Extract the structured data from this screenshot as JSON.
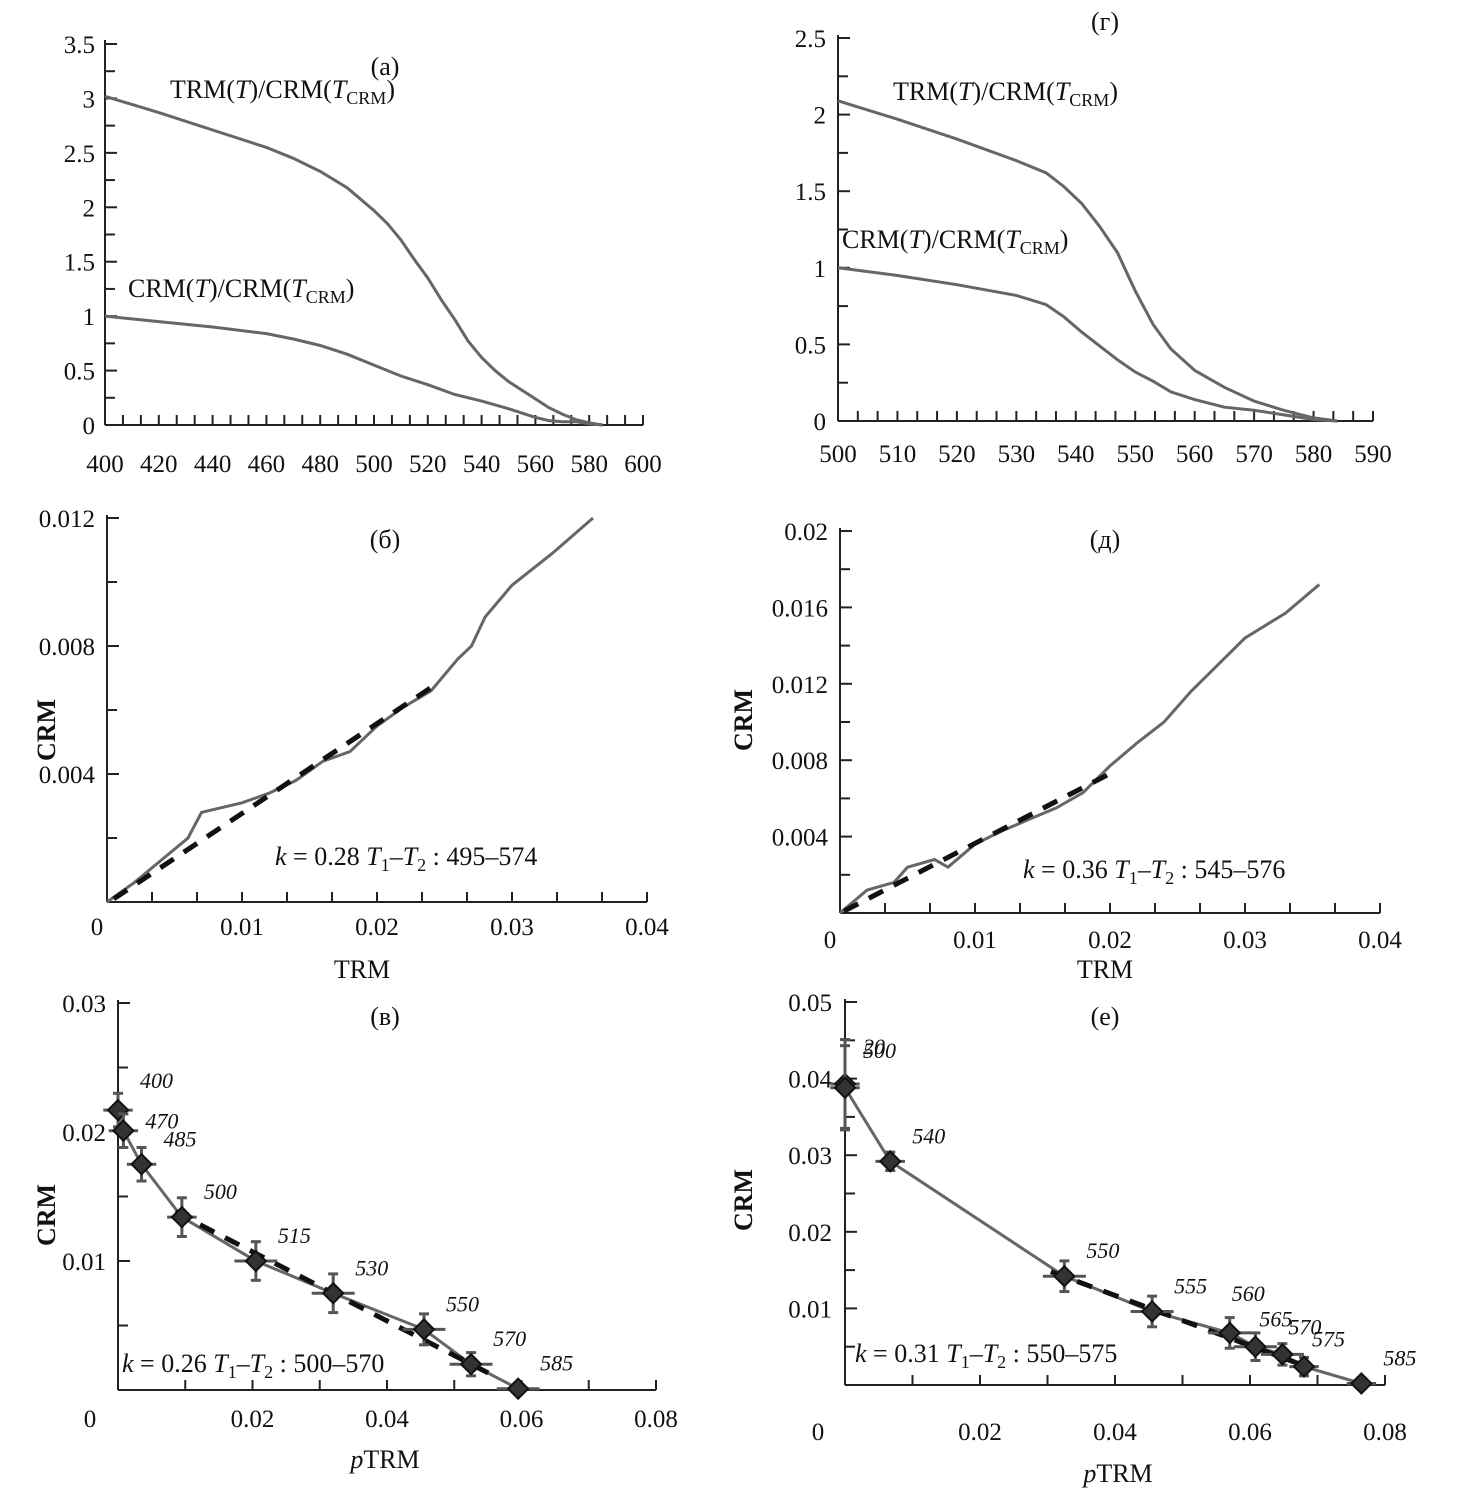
{
  "figure": {
    "description": "Six-panel figure: thermal demagnetization curves and Arai-type plots"
  },
  "chart_data": [
    {
      "id": "a",
      "type": "line",
      "panel_label": "(a)",
      "xlabel": "",
      "ylabel": "",
      "xlim": [
        400,
        600
      ],
      "ylim": [
        0,
        3.5
      ],
      "xticks": [
        "400",
        "420",
        "440",
        "460",
        "480",
        "500",
        "520",
        "540",
        "560",
        "580",
        "600"
      ],
      "yticks": [
        "0",
        "0.5",
        "1",
        "1.5",
        "2",
        "2.5",
        "3",
        "3.5"
      ],
      "series": [
        {
          "name": "TRM(T)/CRM(T_CRM)",
          "label_main": "TRM(",
          "label_T": "T",
          "label_mid": ")/CRM(",
          "label_sub": "CRM",
          "label_end": ")",
          "x": [
            400,
            420,
            440,
            460,
            470,
            480,
            490,
            500,
            505,
            510,
            515,
            520,
            525,
            530,
            535,
            540,
            545,
            550,
            555,
            560,
            565,
            570,
            575,
            580,
            585
          ],
          "y": [
            3.02,
            2.87,
            2.71,
            2.55,
            2.45,
            2.33,
            2.18,
            1.97,
            1.85,
            1.7,
            1.52,
            1.35,
            1.15,
            0.97,
            0.77,
            0.62,
            0.5,
            0.4,
            0.32,
            0.24,
            0.16,
            0.1,
            0.05,
            0.02,
            0.0
          ]
        },
        {
          "name": "CRM(T)/CRM(T_CRM)",
          "label_main": "CRM(",
          "label_T": "T",
          "label_mid": ")/CRM(",
          "label_sub": "CRM",
          "label_end": ")",
          "x": [
            400,
            420,
            440,
            460,
            470,
            480,
            490,
            500,
            510,
            520,
            530,
            540,
            550,
            560,
            565,
            570,
            575,
            580,
            585
          ],
          "y": [
            1.0,
            0.95,
            0.9,
            0.84,
            0.79,
            0.73,
            0.65,
            0.55,
            0.45,
            0.37,
            0.28,
            0.22,
            0.15,
            0.07,
            0.04,
            0.03,
            0.03,
            0.01,
            0.0
          ]
        }
      ]
    },
    {
      "id": "g",
      "type": "line",
      "panel_label": "(г)",
      "xlabel": "",
      "ylabel": "",
      "xlim": [
        500,
        590
      ],
      "ylim": [
        0,
        2.5
      ],
      "xticks": [
        "500",
        "510",
        "520",
        "530",
        "540",
        "550",
        "560",
        "570",
        "580",
        "590"
      ],
      "yticks": [
        "0",
        "0.5",
        "1",
        "1.5",
        "2",
        "2.5"
      ],
      "series": [
        {
          "name": "TRM(T)/CRM(T_CRM)",
          "label_main": "TRM(",
          "label_T": "T",
          "label_mid": ")/CRM(",
          "label_sub": "CRM",
          "label_end": ")",
          "x": [
            500,
            510,
            520,
            530,
            535,
            538,
            541,
            544,
            547,
            550,
            553,
            556,
            560,
            565,
            570,
            575,
            580,
            584
          ],
          "y": [
            2.09,
            1.97,
            1.84,
            1.7,
            1.62,
            1.53,
            1.42,
            1.27,
            1.1,
            0.85,
            0.63,
            0.47,
            0.33,
            0.22,
            0.13,
            0.07,
            0.02,
            0.0
          ]
        },
        {
          "name": "CRM(T)/CRM(T_CRM)",
          "label_main": "CRM(",
          "label_T": "T",
          "label_mid": ")/CRM(",
          "label_sub": "CRM",
          "label_end": ")",
          "x": [
            500,
            510,
            520,
            530,
            535,
            538,
            541,
            544,
            547,
            550,
            553,
            556,
            560,
            565,
            570,
            575,
            580,
            584
          ],
          "y": [
            1.0,
            0.95,
            0.89,
            0.82,
            0.76,
            0.68,
            0.58,
            0.49,
            0.4,
            0.32,
            0.26,
            0.19,
            0.14,
            0.09,
            0.07,
            0.04,
            0.01,
            0.0
          ]
        }
      ]
    },
    {
      "id": "b",
      "type": "line",
      "panel_label": "(б)",
      "xlabel": "TRM",
      "ylabel": "CRM",
      "xlim": [
        0,
        0.04
      ],
      "ylim": [
        0,
        0.012
      ],
      "xticks": [
        "0",
        "0.01",
        "0.02",
        "0.03",
        "0.04"
      ],
      "yticks": [
        "0.004",
        "0.008",
        "0.012"
      ],
      "annotation": {
        "k_sym": "k",
        "k_text": " = 0.28",
        "t1": "T",
        "sub1": "1",
        "dash": "–",
        "t2": "T",
        "sub2": "2",
        "range": " : 495–574"
      },
      "series": [
        {
          "name": "data",
          "x": [
            0.0,
            0.002,
            0.004,
            0.006,
            0.007,
            0.008,
            0.01,
            0.012,
            0.014,
            0.016,
            0.018,
            0.02,
            0.022,
            0.024,
            0.026,
            0.027,
            0.028,
            0.03,
            0.033,
            0.036
          ],
          "y": [
            0.0,
            0.0006,
            0.0013,
            0.002,
            0.0028,
            0.0029,
            0.0031,
            0.0034,
            0.0038,
            0.0044,
            0.0047,
            0.0055,
            0.0061,
            0.0066,
            0.0076,
            0.008,
            0.0089,
            0.0099,
            0.0109,
            0.012
          ]
        },
        {
          "name": "fit",
          "style": "dashed",
          "x": [
            0.0005,
            0.024
          ],
          "y": [
            0.0001,
            0.0067
          ]
        }
      ]
    },
    {
      "id": "d",
      "type": "line",
      "panel_label": "(д)",
      "xlabel": "TRM",
      "ylabel": "CRM",
      "xlim": [
        0,
        0.04
      ],
      "ylim": [
        0,
        0.02
      ],
      "xticks": [
        "0",
        "0.01",
        "0.02",
        "0.03",
        "0.04"
      ],
      "yticks": [
        "0.004",
        "0.008",
        "0.012",
        "0.016",
        "0.02"
      ],
      "annotation": {
        "k_sym": "k",
        "k_text": " = 0.36",
        "t1": "T",
        "sub1": "1",
        "dash": "–",
        "t2": "T",
        "sub2": "2",
        "range": " : 545–576"
      },
      "series": [
        {
          "name": "data",
          "x": [
            0.0,
            0.002,
            0.004,
            0.005,
            0.007,
            0.008,
            0.01,
            0.012,
            0.014,
            0.016,
            0.018,
            0.02,
            0.022,
            0.024,
            0.026,
            0.028,
            0.03,
            0.033,
            0.0355
          ],
          "y": [
            0.0,
            0.0012,
            0.0016,
            0.0024,
            0.0028,
            0.0024,
            0.0036,
            0.0043,
            0.0049,
            0.0055,
            0.0063,
            0.0077,
            0.0089,
            0.01,
            0.0116,
            0.013,
            0.0144,
            0.0157,
            0.0172
          ]
        },
        {
          "name": "fit",
          "style": "dashed",
          "x": [
            0.0003,
            0.02
          ],
          "y": [
            0.0001,
            0.0073
          ]
        }
      ]
    },
    {
      "id": "v",
      "type": "scatter",
      "panel_label": "(в)",
      "xlabel_italic": "p",
      "xlabel": "TRM",
      "ylabel": "CRM",
      "xlim": [
        0,
        0.08
      ],
      "ylim": [
        0,
        0.03
      ],
      "xticks": [
        "0",
        "0.02",
        "0.04",
        "0.06",
        "0.08"
      ],
      "yticks": [
        "0.01",
        "0.02",
        "0.03"
      ],
      "annotation": {
        "k_sym": "k",
        "k_text": " = 0.26",
        "t1": "T",
        "sub1": "1",
        "dash": "–",
        "t2": "T",
        "sub2": "2",
        "range": " : 500–570"
      },
      "points": [
        {
          "label": "400",
          "x": 0.0,
          "y": 0.0217,
          "ex": 0.001,
          "ey": 0.0013
        },
        {
          "label": "470",
          "x": 0.0008,
          "y": 0.0201,
          "ex": 0.001,
          "ey": 0.0013
        },
        {
          "label": "485",
          "x": 0.0035,
          "y": 0.0175,
          "ex": 0.001,
          "ey": 0.0013
        },
        {
          "label": "500",
          "x": 0.0095,
          "y": 0.0134,
          "ex": 0.001,
          "ey": 0.0015
        },
        {
          "label": "515",
          "x": 0.0205,
          "y": 0.01,
          "ex": 0.002,
          "ey": 0.0015
        },
        {
          "label": "530",
          "x": 0.032,
          "y": 0.0075,
          "ex": 0.002,
          "ey": 0.0015
        },
        {
          "label": "550",
          "x": 0.0455,
          "y": 0.0047,
          "ex": 0.002,
          "ey": 0.0012
        },
        {
          "label": "570",
          "x": 0.0525,
          "y": 0.002,
          "ex": 0.002,
          "ey": 0.0009
        },
        {
          "label": "585",
          "x": 0.0595,
          "y": 0.0001,
          "ex": 0.002,
          "ey": 0.0003
        }
      ],
      "fit": {
        "x": [
          0.0085,
          0.0555
        ],
        "y": [
          0.0138,
          0.0012
        ]
      }
    },
    {
      "id": "e",
      "type": "scatter",
      "panel_label": "(e)",
      "xlabel_italic": "p",
      "xlabel": "TRM",
      "ylabel": "CRM",
      "xlim": [
        0,
        0.08
      ],
      "ylim": [
        0,
        0.05
      ],
      "xticks": [
        "0",
        "0.02",
        "0.04",
        "0.06",
        "0.08"
      ],
      "yticks": [
        "0.01",
        "0.02",
        "0.03",
        "0.04",
        "0.05"
      ],
      "annotation": {
        "k_sym": "k",
        "k_text": " = 0.31",
        "t1": "T",
        "sub1": "1",
        "dash": "–",
        "t2": "T",
        "sub2": "2",
        "range": " : 550–575"
      },
      "points": [
        {
          "label": "20",
          "x": 0.0,
          "y": 0.0393,
          "ex": 0.001,
          "ey": 0.0058
        },
        {
          "label": "500",
          "x": 0.0,
          "y": 0.0388,
          "ex": 0.001,
          "ey": 0.0055
        },
        {
          "label": "540",
          "x": 0.0067,
          "y": 0.0292,
          "ex": 0.001,
          "ey": 0.0012
        },
        {
          "label": "550",
          "x": 0.0325,
          "y": 0.0142,
          "ex": 0.002,
          "ey": 0.002
        },
        {
          "label": "555",
          "x": 0.0455,
          "y": 0.0096,
          "ex": 0.002,
          "ey": 0.002
        },
        {
          "label": "560",
          "x": 0.057,
          "y": 0.0068,
          "ex": 0.002,
          "ey": 0.002
        },
        {
          "label": "565",
          "x": 0.0608,
          "y": 0.005,
          "ex": 0.002,
          "ey": 0.0018
        },
        {
          "label": "570",
          "x": 0.0648,
          "y": 0.004,
          "ex": 0.002,
          "ey": 0.0014
        },
        {
          "label": "575",
          "x": 0.068,
          "y": 0.0024,
          "ex": 0.001,
          "ey": 0.0012
        },
        {
          "label": "585",
          "x": 0.0765,
          "y": 0.0002,
          "ex": 0.001,
          "ey": 0.0003
        }
      ],
      "fit": {
        "x": [
          0.0305,
          0.069
        ],
        "y": [
          0.0148,
          0.0022
        ]
      }
    }
  ]
}
